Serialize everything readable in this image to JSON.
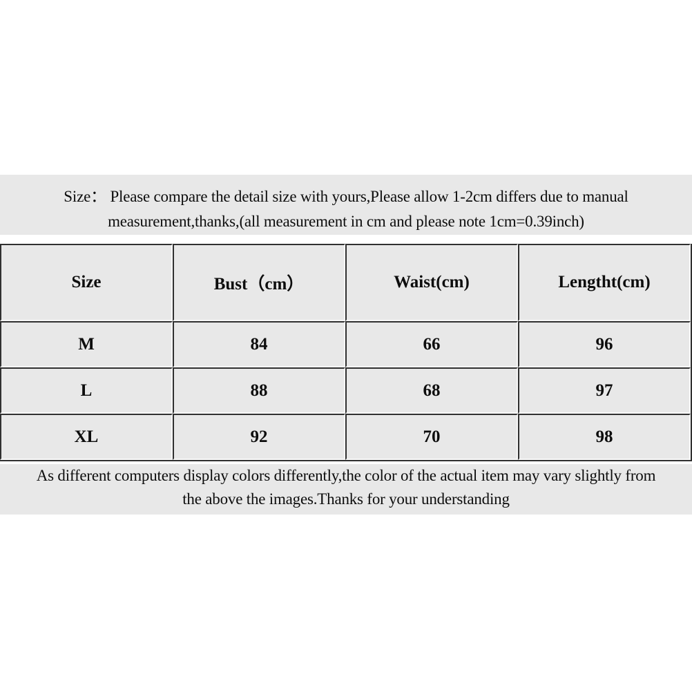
{
  "colors": {
    "page_background": "#ffffff",
    "panel_gray": "#e8e8e8",
    "border_dark": "#303030",
    "border_light": "#f7f7f7",
    "text": "#0d0d0d"
  },
  "top_banner": {
    "line1": "Size：  Please compare the detail size with yours,Please allow 1-2cm differs due to manual",
    "line2": "measurement,thanks,(all measurement in cm and please note 1cm=0.39inch)"
  },
  "table": {
    "headers": [
      "Size",
      "Bust（cm）",
      "Waist(cm)",
      "Lengtht(cm)"
    ],
    "rows": [
      [
        "M",
        "84",
        "66",
        "96"
      ],
      [
        "L",
        "88",
        "68",
        "97"
      ],
      [
        "XL",
        "92",
        "70",
        "98"
      ]
    ]
  },
  "bottom_banner": {
    "line1": "As different computers display colors differently,the color of the actual item may vary slightly from",
    "line2": "the above the images.Thanks for your understanding"
  }
}
